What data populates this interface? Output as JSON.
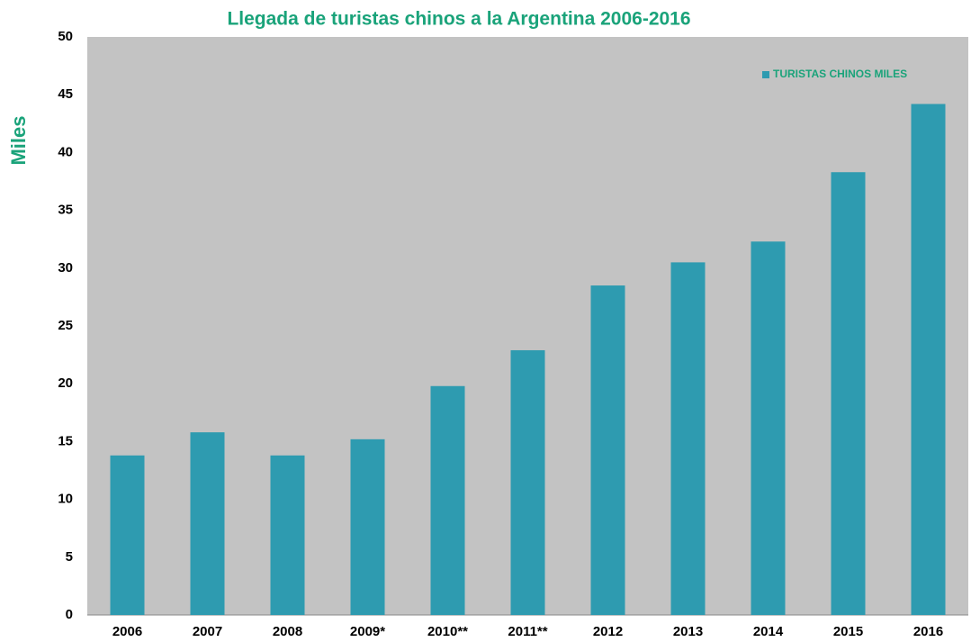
{
  "chart_data": {
    "type": "bar",
    "title": "Llegada de turistas chinos a la Argentina 2006-2016",
    "y_label": "Miles",
    "categories": [
      "2006",
      "2007",
      "2008",
      "2009*",
      "2010**",
      "2011**",
      "2012",
      "2013",
      "2014",
      "2015",
      "2016"
    ],
    "series": [
      {
        "name": "TURISTAS CHINOS MILES",
        "color": "#2e9bb0",
        "values": [
          13.8,
          15.8,
          13.8,
          15.2,
          19.8,
          22.9,
          28.5,
          30.5,
          32.3,
          38.3,
          44.2
        ]
      }
    ],
    "ylim": [
      0,
      50
    ],
    "yticks": [
      0,
      5,
      10,
      15,
      20,
      25,
      30,
      35,
      40,
      45,
      50
    ],
    "legend": "top-right",
    "grid": false
  }
}
